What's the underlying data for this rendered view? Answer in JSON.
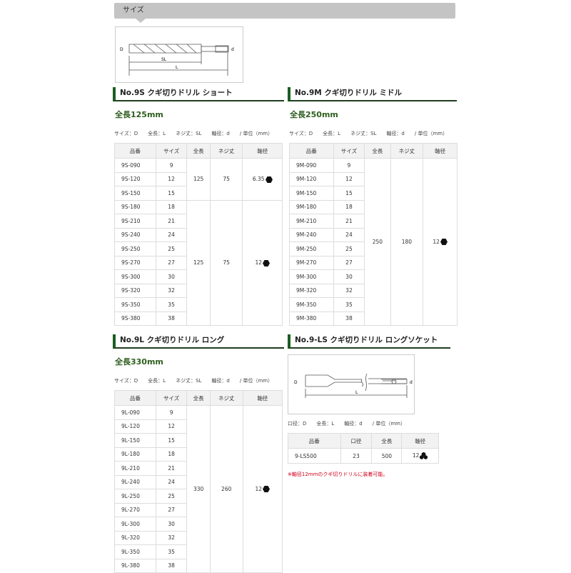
{
  "header": {
    "title": "サイズ"
  },
  "diagram_labels": {
    "D": "D",
    "d": "d",
    "SL": "SL",
    "L": "L"
  },
  "colors": {
    "accent_green": "#1b5e20",
    "title_green": "#2e5e1e",
    "note_red": "#d0021b"
  },
  "sections": [
    {
      "title": "No.9S クギ切りドリル ショート",
      "length": "全長125mm",
      "legend": "サイズ：D　　全長：L　　ネジ丈：SL　　軸径：d　　/ 単位（mm）",
      "headers": [
        "品番",
        "サイズ",
        "全長",
        "ネジ丈",
        "軸径"
      ],
      "rows": [
        [
          "9S-090",
          "9"
        ],
        [
          "9S-120",
          "12"
        ],
        [
          "9S-150",
          "15"
        ],
        [
          "9S-180",
          "18"
        ],
        [
          "9S-210",
          "21"
        ],
        [
          "9S-240",
          "24"
        ],
        [
          "9S-250",
          "25"
        ],
        [
          "9S-270",
          "27"
        ],
        [
          "9S-300",
          "30"
        ],
        [
          "9S-320",
          "32"
        ],
        [
          "9S-350",
          "35"
        ],
        [
          "9S-380",
          "38"
        ]
      ],
      "groups": [
        {
          "span": 3,
          "length": "125",
          "thread": "75",
          "shaft": "6.35",
          "shaft_icon": "hex-icon"
        },
        {
          "span": 9,
          "length": "125",
          "thread": "75",
          "shaft": "12",
          "shaft_icon": "hex-icon"
        }
      ]
    },
    {
      "title": "No.9M クギ切りドリル ミドル",
      "length": "全長250mm",
      "legend": "サイズ：D　　全長：L　　ネジ丈：SL　　軸径：d　　/ 単位（mm）",
      "headers": [
        "品番",
        "サイズ",
        "全長",
        "ネジ丈",
        "軸径"
      ],
      "rows": [
        [
          "9M-090",
          "9"
        ],
        [
          "9M-120",
          "12"
        ],
        [
          "9M-150",
          "15"
        ],
        [
          "9M-180",
          "18"
        ],
        [
          "9M-210",
          "21"
        ],
        [
          "9M-240",
          "24"
        ],
        [
          "9M-250",
          "25"
        ],
        [
          "9M-270",
          "27"
        ],
        [
          "9M-300",
          "30"
        ],
        [
          "9M-320",
          "32"
        ],
        [
          "9M-350",
          "35"
        ],
        [
          "9M-380",
          "38"
        ]
      ],
      "groups": [
        {
          "span": 12,
          "length": "250",
          "thread": "180",
          "shaft": "12",
          "shaft_icon": "hex-icon"
        }
      ]
    },
    {
      "title": "No.9L クギ切りドリル ロング",
      "length": "全長330mm",
      "legend": "サイズ：D　　全長：L　　ネジ丈：SL　　軸径：d　　/ 単位（mm）",
      "headers": [
        "品番",
        "サイズ",
        "全長",
        "ネジ丈",
        "軸径"
      ],
      "rows": [
        [
          "9L-090",
          "9"
        ],
        [
          "9L-120",
          "12"
        ],
        [
          "9L-150",
          "15"
        ],
        [
          "9L-180",
          "18"
        ],
        [
          "9L-210",
          "21"
        ],
        [
          "9L-240",
          "24"
        ],
        [
          "9L-250",
          "25"
        ],
        [
          "9L-270",
          "27"
        ],
        [
          "9L-300",
          "30"
        ],
        [
          "9L-320",
          "32"
        ],
        [
          "9L-350",
          "35"
        ],
        [
          "9L-380",
          "38"
        ]
      ],
      "groups": [
        {
          "span": 12,
          "length": "330",
          "thread": "260",
          "shaft": "12",
          "shaft_icon": "hex-icon"
        }
      ]
    },
    {
      "title": "No.9-LS クギ切りドリル ロングソケット",
      "legend": "口径：D　　全長：L　　軸径：d　　/ 単位（mm）",
      "headers": [
        "品番",
        "口径",
        "全長",
        "軸径"
      ],
      "rows": [
        [
          "9-LS500",
          "23",
          "500",
          "12"
        ]
      ],
      "shaft_icon": "trefoil-socket-icon",
      "note": "※軸径12mmのクギ切りドリルに装着可能。"
    }
  ]
}
